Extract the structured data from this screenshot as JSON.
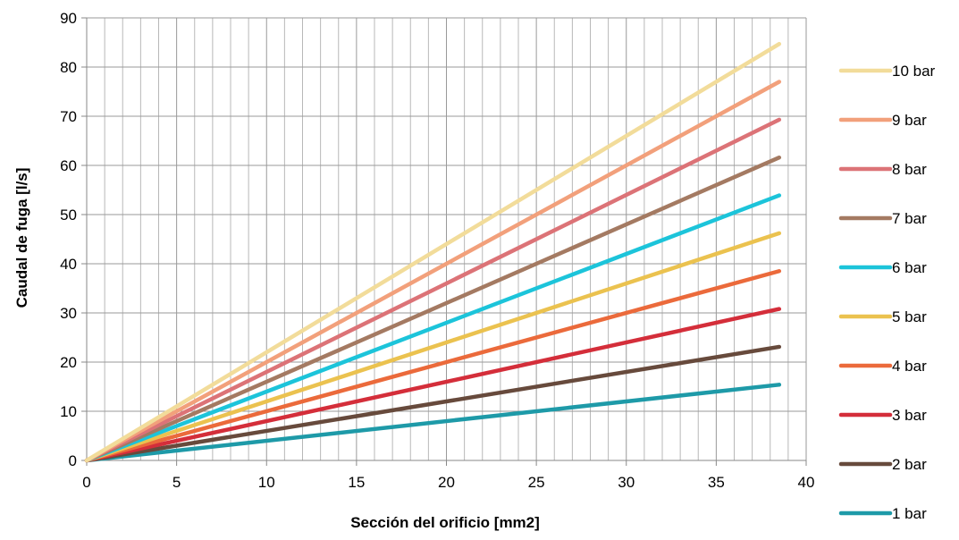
{
  "chart_data": {
    "type": "line",
    "title": "",
    "xlabel": "Sección del orificio [mm2]",
    "ylabel": "Caudal de fuga [l/s]",
    "xlim": [
      0,
      40
    ],
    "ylim": [
      0,
      90
    ],
    "x_ticks": [
      0,
      5,
      10,
      15,
      20,
      25,
      30,
      35,
      40
    ],
    "y_ticks": [
      0,
      10,
      20,
      30,
      40,
      50,
      60,
      70,
      80,
      90
    ],
    "grid": true,
    "legend_position": "right",
    "x": [
      0,
      38.5
    ],
    "series": [
      {
        "name": "10 bar",
        "color": "#F2DC9A",
        "values": [
          0,
          84.7
        ]
      },
      {
        "name": "9 bar",
        "color": "#F2A07B",
        "values": [
          0,
          77.0
        ]
      },
      {
        "name": "8 bar",
        "color": "#DC7377",
        "values": [
          0,
          69.3
        ]
      },
      {
        "name": "7 bar",
        "color": "#A47A62",
        "values": [
          0,
          61.6
        ]
      },
      {
        "name": "6 bar",
        "color": "#1CC4DA",
        "values": [
          0,
          53.9
        ]
      },
      {
        "name": "5 bar",
        "color": "#EBC24F",
        "values": [
          0,
          46.2
        ]
      },
      {
        "name": "4 bar",
        "color": "#EB6A3B",
        "values": [
          0,
          38.5
        ]
      },
      {
        "name": "3 bar",
        "color": "#D42E3A",
        "values": [
          0,
          30.8
        ]
      },
      {
        "name": "2 bar",
        "color": "#674A3C",
        "values": [
          0,
          23.1
        ]
      },
      {
        "name": "1 bar",
        "color": "#1E9AA8",
        "values": [
          0,
          15.4
        ]
      }
    ]
  }
}
